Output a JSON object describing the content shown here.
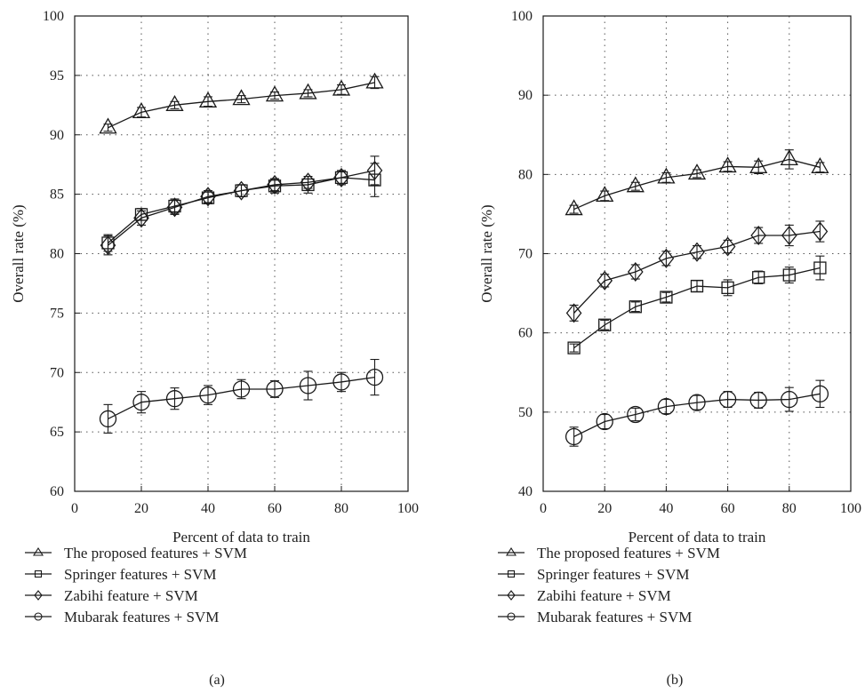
{
  "chart_data": [
    {
      "type": "line",
      "panel_label": "(a)",
      "xlabel": "Percent of data to train",
      "ylabel": "Overall rate (%)",
      "xlim": [
        0,
        100
      ],
      "ylim": [
        60,
        100
      ],
      "x_ticks": [
        "0",
        "20",
        "40",
        "60",
        "80",
        "100"
      ],
      "y_ticks": [
        "60",
        "65",
        "70",
        "75",
        "80",
        "85",
        "90",
        "95",
        "100"
      ],
      "grid": "dotted",
      "legend_placement": "bottom",
      "x": [
        10,
        20,
        30,
        40,
        50,
        60,
        70,
        80,
        90
      ],
      "series": [
        {
          "name": "The proposed features + SVM",
          "marker": "triangle",
          "values": [
            90.6,
            91.9,
            92.5,
            92.8,
            93.0,
            93.3,
            93.5,
            93.8,
            94.4
          ],
          "errors": [
            0.3,
            0.4,
            0.3,
            0.4,
            0.3,
            0.3,
            0.3,
            0.4,
            0.5
          ]
        },
        {
          "name": "Springer features + SVM",
          "marker": "square",
          "values": [
            80.9,
            83.3,
            84.0,
            84.7,
            85.3,
            85.7,
            85.8,
            86.4,
            86.2
          ],
          "errors": [
            0.7,
            0.5,
            0.6,
            0.5,
            0.5,
            0.6,
            0.7,
            0.6,
            1.4
          ]
        },
        {
          "name": "Zabihi feature + SVM",
          "marker": "diamond",
          "values": [
            80.7,
            83.0,
            83.9,
            84.8,
            85.3,
            85.8,
            86.0,
            86.4,
            87.0
          ],
          "errors": [
            0.8,
            0.6,
            0.6,
            0.5,
            0.5,
            0.5,
            0.5,
            0.5,
            1.2
          ]
        },
        {
          "name": "Mubarak features + SVM",
          "marker": "circle",
          "values": [
            66.1,
            67.5,
            67.8,
            68.1,
            68.6,
            68.6,
            68.9,
            69.2,
            69.6
          ],
          "errors": [
            1.2,
            0.9,
            0.9,
            0.8,
            0.8,
            0.7,
            1.2,
            0.8,
            1.5
          ]
        }
      ]
    },
    {
      "type": "line",
      "panel_label": "(b)",
      "xlabel": "Percent of data to train",
      "ylabel": "Overall rate (%)",
      "xlim": [
        0,
        100
      ],
      "ylim": [
        40,
        100
      ],
      "x_ticks": [
        "0",
        "20",
        "40",
        "60",
        "80",
        "100"
      ],
      "y_ticks": [
        "40",
        "50",
        "60",
        "70",
        "80",
        "90",
        "100"
      ],
      "grid": "dotted",
      "legend_placement": "bottom",
      "x": [
        10,
        20,
        30,
        40,
        50,
        60,
        70,
        80,
        90
      ],
      "series": [
        {
          "name": "The proposed features + SVM",
          "marker": "triangle",
          "values": [
            75.6,
            77.3,
            78.5,
            79.6,
            80.1,
            81.0,
            80.9,
            81.9,
            80.9
          ],
          "errors": [
            0.5,
            0.6,
            0.5,
            0.6,
            0.5,
            0.6,
            0.8,
            1.2,
            0.6
          ]
        },
        {
          "name": "Springer features + SVM",
          "marker": "square",
          "values": [
            58.1,
            61.0,
            63.3,
            64.5,
            65.9,
            65.7,
            67.0,
            67.3,
            68.2
          ],
          "errors": [
            0.5,
            0.6,
            0.6,
            0.6,
            0.7,
            1.0,
            0.8,
            1.0,
            1.5
          ]
        },
        {
          "name": "Zabihi feature + SVM",
          "marker": "diamond",
          "values": [
            62.5,
            66.6,
            67.7,
            69.4,
            70.2,
            70.9,
            72.3,
            72.3,
            72.8
          ],
          "errors": [
            1.0,
            0.8,
            0.9,
            0.9,
            0.8,
            0.8,
            1.0,
            1.3,
            1.3
          ]
        },
        {
          "name": "Mubarak features + SVM",
          "marker": "circle",
          "values": [
            46.9,
            48.8,
            49.7,
            50.7,
            51.2,
            51.6,
            51.5,
            51.6,
            52.3
          ],
          "errors": [
            1.2,
            0.9,
            0.8,
            0.9,
            0.9,
            1.0,
            1.0,
            1.5,
            1.7
          ]
        }
      ]
    }
  ]
}
